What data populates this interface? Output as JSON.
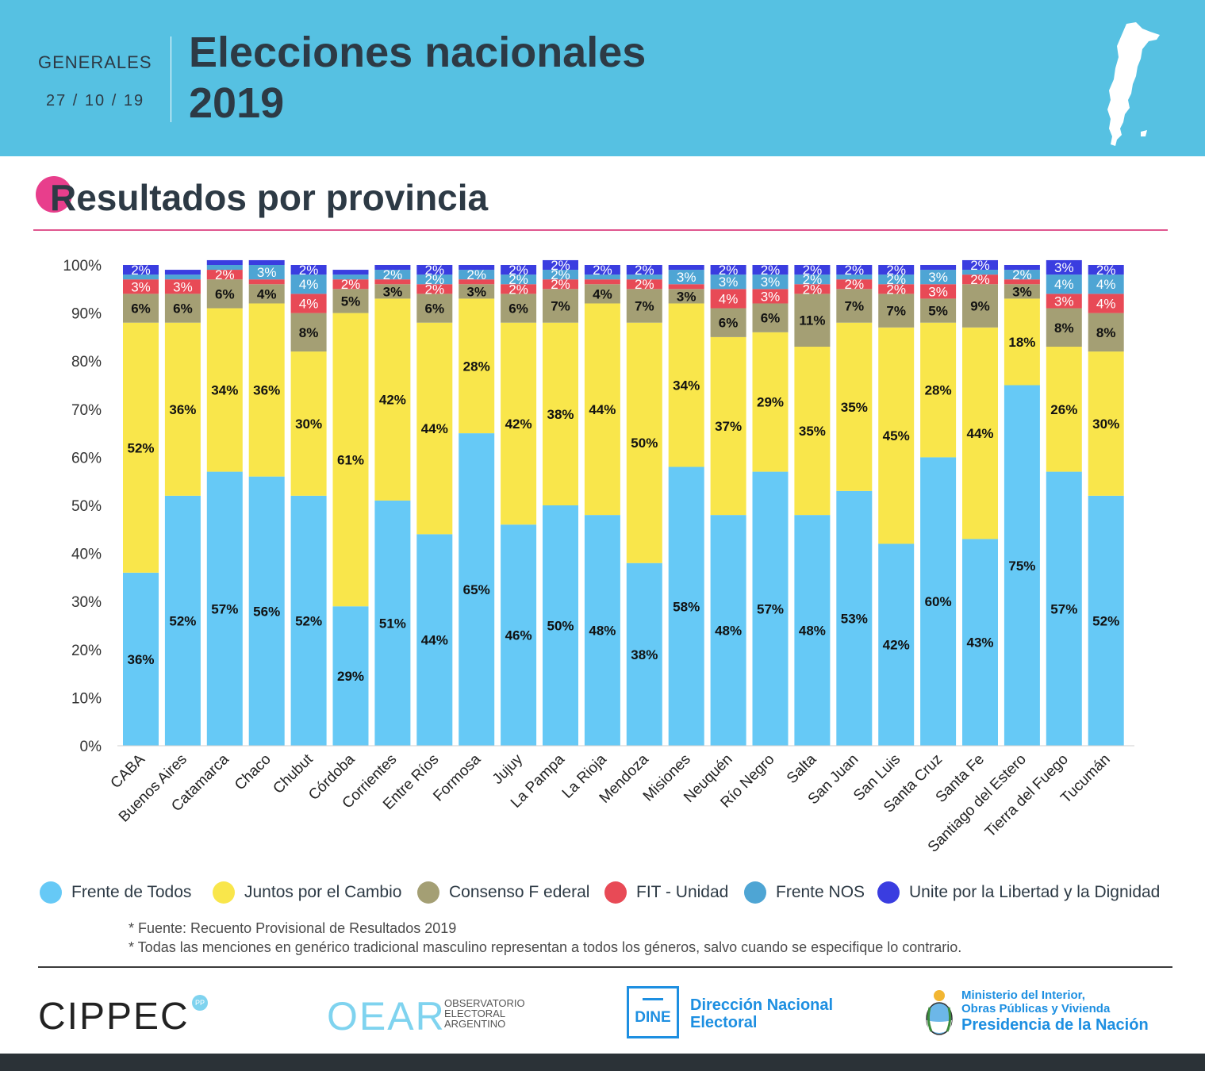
{
  "header": {
    "label": "GENERALES",
    "date": "27 / 10 / 19",
    "title_line1": "Elecciones nacionales",
    "title_line2": "2019"
  },
  "section_title": "Resultados por provincia",
  "colors": {
    "header_bg": "#56c1e2",
    "accent": "#e83e8c",
    "Frente de Todos": "#66c9f6",
    "Juntos por el Cambio": "#f9e64b",
    "Consenso Federal": "#a49f74",
    "FIT - Unidad": "#e84a56",
    "Frente NOS": "#4ea5d4",
    "Unite por la Libertad y la Dignidad": "#3a3de0"
  },
  "chart_data": {
    "type": "bar",
    "stacked": true,
    "ylim": [
      0,
      100
    ],
    "yticks": [
      "0%",
      "10%",
      "20%",
      "30%",
      "40%",
      "50%",
      "60%",
      "70%",
      "80%",
      "90%",
      "100%"
    ],
    "categories": [
      "CABA",
      "Buenos Aires",
      "Catamarca",
      "Chaco",
      "Chubut",
      "Córdoba",
      "Corrientes",
      "Entre Ríos",
      "Formosa",
      "Jujuy",
      "La Pampa",
      "La Rioja",
      "Mendoza",
      "Misiones",
      "Neuquén",
      "Río Negro",
      "Salta",
      "San Juan",
      "San Luis",
      "Santa Cruz",
      "Santa Fe",
      "Santiago del Estero",
      "Tierra del Fuego",
      "Tucumán"
    ],
    "series": [
      {
        "name": "Frente de Todos",
        "values": [
          36,
          52,
          57,
          56,
          52,
          29,
          51,
          44,
          65,
          46,
          50,
          48,
          38,
          58,
          48,
          57,
          48,
          53,
          42,
          60,
          43,
          75,
          57,
          52
        ]
      },
      {
        "name": "Juntos por el Cambio",
        "values": [
          52,
          36,
          34,
          36,
          30,
          61,
          42,
          44,
          28,
          42,
          38,
          44,
          50,
          34,
          37,
          29,
          35,
          35,
          45,
          28,
          44,
          18,
          26,
          30
        ]
      },
      {
        "name": "Consenso Federal",
        "values": [
          6,
          6,
          6,
          4,
          8,
          5,
          3,
          6,
          3,
          6,
          7,
          4,
          7,
          3,
          6,
          6,
          11,
          7,
          7,
          5,
          9,
          3,
          8,
          8
        ]
      },
      {
        "name": "FIT - Unidad",
        "values": [
          3,
          3,
          2,
          1,
          4,
          2,
          1,
          2,
          1,
          2,
          2,
          1,
          2,
          1,
          4,
          3,
          2,
          2,
          2,
          3,
          2,
          1,
          3,
          4
        ]
      },
      {
        "name": "Frente NOS",
        "values": [
          1,
          1,
          1,
          3,
          4,
          1,
          2,
          2,
          2,
          2,
          2,
          1,
          1,
          3,
          3,
          3,
          2,
          1,
          2,
          3,
          1,
          2,
          4,
          4
        ]
      },
      {
        "name": "Unite por la Libertad y la Dignidad",
        "values": [
          2,
          1,
          1,
          1,
          2,
          1,
          1,
          2,
          1,
          2,
          2,
          2,
          2,
          1,
          2,
          2,
          2,
          2,
          2,
          1,
          2,
          1,
          3,
          2
        ]
      }
    ],
    "shown_labels": [
      [
        "36%",
        "52%",
        "6%",
        "3%",
        "",
        "2%"
      ],
      [
        "52%",
        "36%",
        "6%",
        "3%",
        "",
        ""
      ],
      [
        "57%",
        "34%",
        "6%",
        "2%",
        "",
        ""
      ],
      [
        "56%",
        "36%",
        "4%",
        "",
        "3%",
        ""
      ],
      [
        "52%",
        "30%",
        "8%",
        "4%",
        "4%",
        "2%"
      ],
      [
        "29%",
        "61%",
        "5%",
        "2%",
        "",
        ""
      ],
      [
        "51%",
        "42%",
        "3%",
        "",
        "2%",
        ""
      ],
      [
        "44%",
        "44%",
        "6%",
        "2%",
        "2%",
        "2%"
      ],
      [
        "65%",
        "28%",
        "3%",
        "",
        "2%",
        ""
      ],
      [
        "46%",
        "42%",
        "6%",
        "2%",
        "2%",
        "2%"
      ],
      [
        "50%",
        "38%",
        "7%",
        "2%",
        "2%",
        "2%"
      ],
      [
        "48%",
        "44%",
        "4%",
        "",
        "",
        "2%"
      ],
      [
        "38%",
        "50%",
        "7%",
        "2%",
        "",
        "2%"
      ],
      [
        "58%",
        "34%",
        "3%",
        "",
        "3%",
        ""
      ],
      [
        "48%",
        "37%",
        "6%",
        "4%",
        "3%",
        "2%"
      ],
      [
        "57%",
        "29%",
        "6%",
        "3%",
        "3%",
        "2%"
      ],
      [
        "48%",
        "35%",
        "11%",
        "2%",
        "2%",
        "2%"
      ],
      [
        "53%",
        "35%",
        "7%",
        "2%",
        "",
        "2%"
      ],
      [
        "42%",
        "45%",
        "7%",
        "2%",
        "2%",
        "2%"
      ],
      [
        "60%",
        "28%",
        "5%",
        "3%",
        "3%",
        ""
      ],
      [
        "43%",
        "44%",
        "9%",
        "2%",
        "",
        "2%"
      ],
      [
        "75%",
        "18%",
        "3%",
        "",
        "2%",
        ""
      ],
      [
        "57%",
        "26%",
        "8%",
        "3%",
        "4%",
        "3%"
      ],
      [
        "52%",
        "30%",
        "8%",
        "4%",
        "4%",
        "2%"
      ]
    ],
    "legend": [
      "Frente de Todos",
      "Juntos por el Cambio",
      "Consenso F ederal",
      "FIT - Unidad",
      "Frente NOS",
      "Unite por la  Libertad y la Dignidad"
    ]
  },
  "notes": [
    "* Fuente: Recuento Provisional de Resultados 2019",
    "* Todas las menciones en genérico tradicional masculino representan a todos los géneros, salvo cuando se especifique lo contrario."
  ],
  "footer": {
    "cippec": "CIPPEC",
    "cippec_badge": "PP",
    "oear": "OEAR",
    "oear_sub": [
      "OBSERVATORIO",
      "ELECTORAL",
      "ARGENTINO"
    ],
    "dine": "DINE",
    "dine_name": [
      "Dirección Nacional",
      "Electoral"
    ],
    "ministerio": [
      "Ministerio del Interior,",
      "Obras Públicas y Vivienda"
    ],
    "presidencia": "Presidencia de la Nación"
  }
}
